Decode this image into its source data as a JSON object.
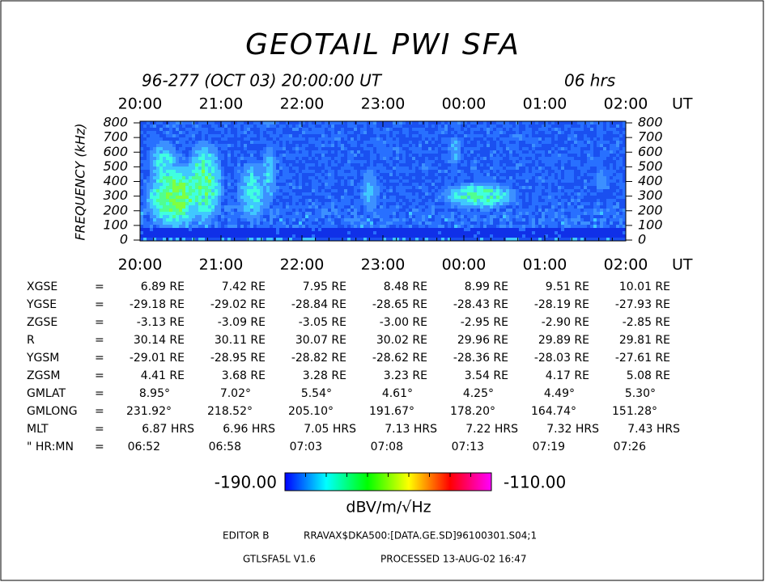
{
  "title": "GEOTAIL PWI SFA",
  "subtitle": "96-277 (OCT 03) 20:00:00 UT",
  "duration": "06 hrs",
  "time_axis": {
    "ticks": [
      "20:00",
      "21:00",
      "22:00",
      "23:00",
      "00:00",
      "01:00",
      "02:00"
    ],
    "unit": "UT"
  },
  "frequency_axis": {
    "label": "FREQUENCY (kHz)",
    "ticks": [
      800,
      700,
      600,
      500,
      400,
      300,
      200,
      100,
      0
    ]
  },
  "ephemeris": {
    "separator": "=",
    "rows": [
      {
        "label": "XGSE",
        "cells": [
          "6.89 RE",
          "7.42 RE",
          "7.95 RE",
          "8.48 RE",
          "8.99 RE",
          "9.51 RE",
          "10.01 RE"
        ]
      },
      {
        "label": "YGSE",
        "cells": [
          "-29.18 RE",
          "-29.02 RE",
          "-28.84 RE",
          "-28.65 RE",
          "-28.43 RE",
          "-28.19 RE",
          "-27.93 RE"
        ]
      },
      {
        "label": "ZGSE",
        "cells": [
          "-3.13 RE",
          "-3.09 RE",
          "-3.05 RE",
          "-3.00 RE",
          "-2.95 RE",
          "-2.90 RE",
          "-2.85 RE"
        ]
      },
      {
        "label": "R",
        "cells": [
          "30.14 RE",
          "30.11 RE",
          "30.07 RE",
          "30.02 RE",
          "29.96 RE",
          "29.89 RE",
          "29.81 RE"
        ]
      },
      {
        "label": "YGSM",
        "cells": [
          "-29.01 RE",
          "-28.95 RE",
          "-28.82 RE",
          "-28.62 RE",
          "-28.36 RE",
          "-28.03 RE",
          "-27.61 RE"
        ]
      },
      {
        "label": "ZGSM",
        "cells": [
          "4.41 RE",
          "3.68 RE",
          "3.28 RE",
          "3.23 RE",
          "3.54 RE",
          "4.17 RE",
          "5.08 RE"
        ]
      },
      {
        "label": "GMLAT",
        "cells": [
          "8.95°",
          "7.02°",
          "5.54°",
          "4.61°",
          "4.25°",
          "4.49°",
          "5.30°"
        ]
      },
      {
        "label": "GMLONG",
        "cells": [
          "231.92°",
          "218.52°",
          "205.10°",
          "191.67°",
          "178.20°",
          "164.74°",
          "151.28°"
        ]
      },
      {
        "label": "MLT",
        "cells": [
          "6.87 HRS",
          "6.96 HRS",
          "7.05 HRS",
          "7.13 HRS",
          "7.22 HRS",
          "7.32 HRS",
          "7.43 HRS"
        ]
      },
      {
        "label": "\" HR:MN",
        "cells": [
          "06:52",
          "06:58",
          "07:03",
          "07:08",
          "07:13",
          "07:19",
          "07:26"
        ]
      }
    ]
  },
  "colorbar": {
    "min_label": "-190.00",
    "max_label": "-110.00",
    "unit": "dBV/m/√Hz"
  },
  "footer": {
    "editor": "EDITOR B",
    "file": "RRAVAX$DKA500:[DATA.GE.SD]96100301.S04;1",
    "version": "GTLSFA5L V1.6",
    "processed": "PROCESSED 13-AUG-02  16:47"
  }
}
